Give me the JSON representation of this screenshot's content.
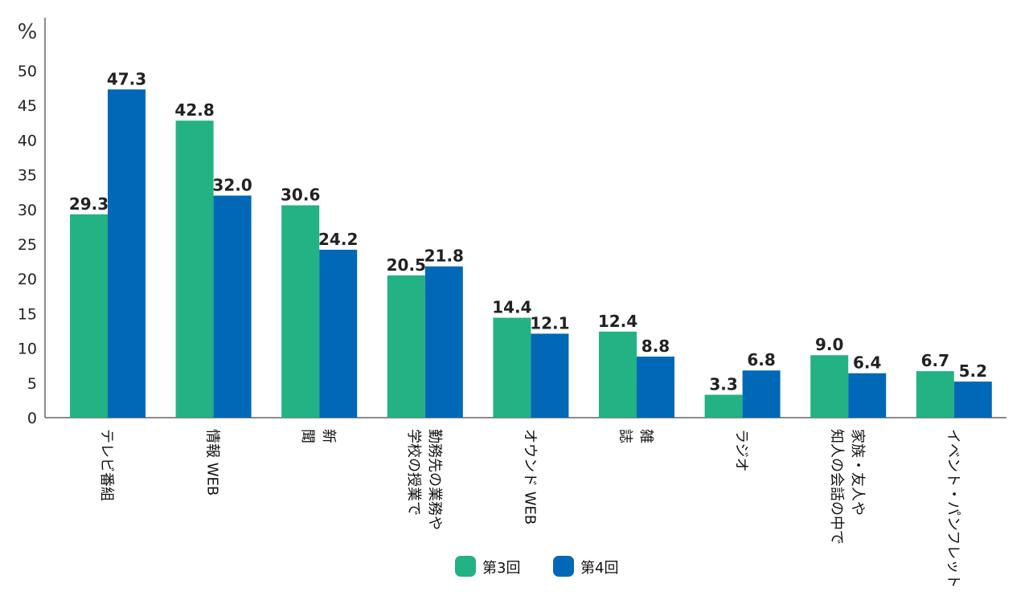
{
  "chart_data": {
    "type": "bar",
    "ylabel": "%",
    "ylim": [
      0,
      50
    ],
    "yticks": [
      0,
      5,
      10,
      15,
      20,
      25,
      30,
      35,
      40,
      45,
      50
    ],
    "categories": [
      [
        "テレビ番組"
      ],
      [
        "情報 WEB"
      ],
      [
        "新",
        "聞"
      ],
      [
        "勤務先の業務や",
        "学校の授業で"
      ],
      [
        "オウンド WEB"
      ],
      [
        "雑",
        "誌"
      ],
      [
        "ラジオ"
      ],
      [
        "家族・友人や",
        "知人の会話の中で"
      ],
      [
        "イベント・パンフレット"
      ]
    ],
    "series": [
      {
        "name": "第3回",
        "color": "#22b283",
        "values": [
          29.3,
          42.8,
          30.6,
          20.5,
          14.4,
          12.4,
          3.3,
          9.0,
          6.7
        ],
        "labels": [
          "29.3",
          "42.8",
          "30.6",
          "20.5",
          "14.4",
          "12.4",
          "3.3",
          "9.0",
          "6.7"
        ]
      },
      {
        "name": "第4回",
        "color": "#0068b7",
        "values": [
          47.3,
          32.0,
          24.2,
          21.8,
          12.1,
          8.8,
          6.8,
          6.4,
          5.2
        ],
        "labels": [
          "47.3",
          "32.0",
          "24.2",
          "21.8",
          "12.1",
          "8.8",
          "6.8",
          "6.4",
          "5.2"
        ]
      }
    ],
    "legend": "bottom-center",
    "grid": false
  }
}
